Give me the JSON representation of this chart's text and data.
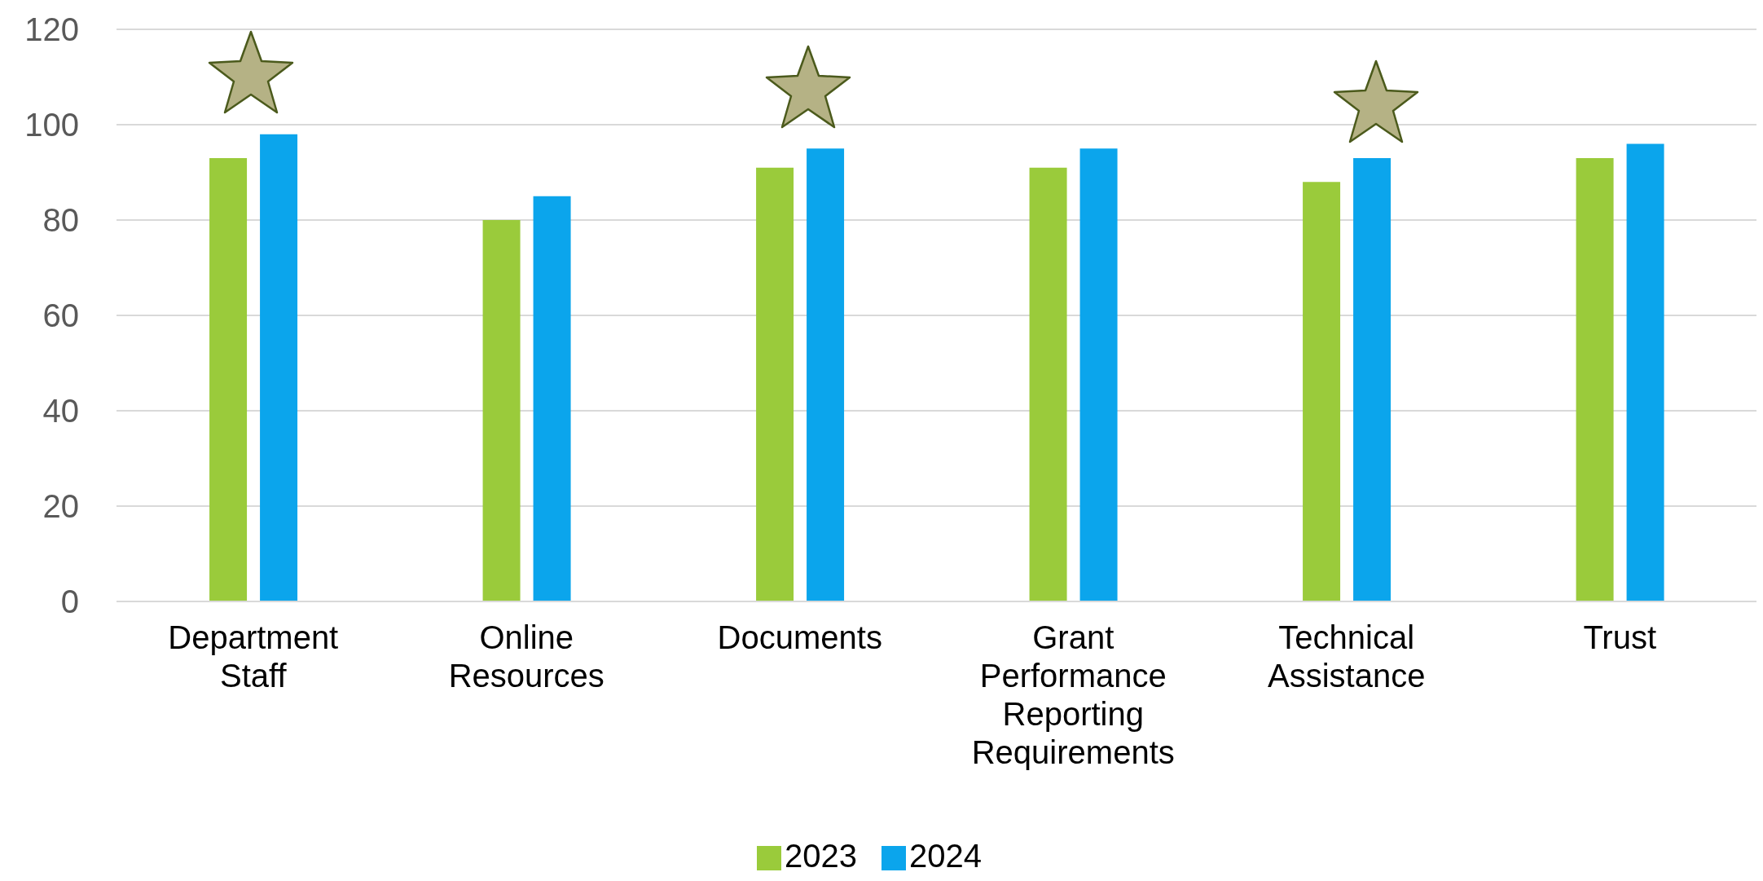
{
  "chart_data": {
    "type": "bar",
    "categories": [
      "Department Staff",
      "Online Resources",
      "Documents",
      "Grant Performance Reporting Requirements",
      "Technical Assistance",
      "Trust"
    ],
    "series": [
      {
        "name": "2023",
        "color": "#9acb3b",
        "values": [
          93,
          80,
          91,
          91,
          88,
          93
        ]
      },
      {
        "name": "2024",
        "color": "#0ba5ec",
        "values": [
          98,
          85,
          95,
          95,
          93,
          96
        ]
      }
    ],
    "ylim": [
      0,
      120
    ],
    "yticks": [
      0,
      20,
      40,
      60,
      80,
      100,
      120
    ],
    "grid": "y",
    "legend": "bottom"
  }
}
